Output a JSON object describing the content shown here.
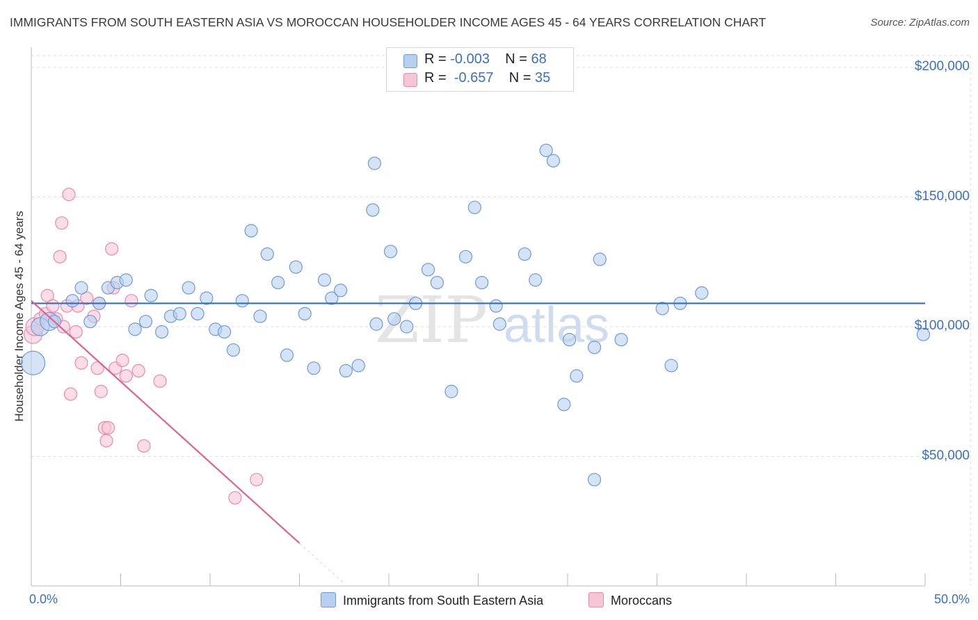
{
  "title": "IMMIGRANTS FROM SOUTH EASTERN ASIA VS MOROCCAN HOUSEHOLDER INCOME AGES 45 - 64 YEARS CORRELATION CHART",
  "source": "Source: ZipAtlas.com",
  "watermark": {
    "zip": "ZIP",
    "atlas": "atlas"
  },
  "legend": {
    "row1": {
      "r_label": "R =",
      "r_value": "-0.003",
      "n_label": "N =",
      "n_value": "68"
    },
    "row2": {
      "r_label": "R =",
      "r_value": "-0.657",
      "n_label": "N =",
      "n_value": "35"
    }
  },
  "colors": {
    "blue_fill": "#b8d0f0",
    "blue_stroke": "#6f9ad8",
    "blue_line": "#2e6fc4",
    "pink_fill": "#f7c6d6",
    "pink_stroke": "#e88aab",
    "pink_line": "#e0608e",
    "axis_text": "#3a6fc4",
    "grid": "#dddddd"
  },
  "chart_data": {
    "type": "scatter",
    "title": "IMMIGRANTS FROM SOUTH EASTERN ASIA VS MOROCCAN HOUSEHOLDER INCOME AGES 45 - 64 YEARS CORRELATION CHART",
    "xlabel": "",
    "ylabel": "Householder Income Ages 45 - 64 years",
    "xlim": [
      0,
      50
    ],
    "ylim": [
      0,
      210000
    ],
    "x_tick_labels": [
      "0.0%",
      "50.0%"
    ],
    "y_ticks": [
      50000,
      100000,
      150000,
      200000
    ],
    "y_tick_labels": [
      "$50,000",
      "$100,000",
      "$150,000",
      "$200,000"
    ],
    "grid": true,
    "legend_position": "top-center",
    "series": [
      {
        "name": "Immigrants from South Eastern Asia",
        "color": "#6f9ad8",
        "trend": {
          "x": [
            0,
            50
          ],
          "y": [
            109000,
            109000
          ]
        },
        "points": [
          {
            "x": 0.1,
            "y": 86000,
            "s": 3
          },
          {
            "x": 0.5,
            "y": 100000,
            "s": 2
          },
          {
            "x": 1.0,
            "y": 102000,
            "s": 2
          },
          {
            "x": 1.3,
            "y": 102000,
            "s": 1
          },
          {
            "x": 2.3,
            "y": 110000,
            "s": 1
          },
          {
            "x": 2.8,
            "y": 115000,
            "s": 1
          },
          {
            "x": 3.3,
            "y": 102000,
            "s": 1
          },
          {
            "x": 3.8,
            "y": 109000,
            "s": 1
          },
          {
            "x": 4.3,
            "y": 115000,
            "s": 1
          },
          {
            "x": 4.8,
            "y": 117000,
            "s": 1
          },
          {
            "x": 5.3,
            "y": 118000,
            "s": 1
          },
          {
            "x": 5.8,
            "y": 99000,
            "s": 1
          },
          {
            "x": 6.4,
            "y": 102000,
            "s": 1
          },
          {
            "x": 6.7,
            "y": 112000,
            "s": 1
          },
          {
            "x": 7.3,
            "y": 98000,
            "s": 1
          },
          {
            "x": 7.8,
            "y": 104000,
            "s": 1
          },
          {
            "x": 8.3,
            "y": 105000,
            "s": 1
          },
          {
            "x": 8.8,
            "y": 115000,
            "s": 1
          },
          {
            "x": 9.3,
            "y": 105000,
            "s": 1
          },
          {
            "x": 9.8,
            "y": 111000,
            "s": 1
          },
          {
            "x": 10.3,
            "y": 99000,
            "s": 1
          },
          {
            "x": 10.8,
            "y": 98000,
            "s": 1
          },
          {
            "x": 11.3,
            "y": 91000,
            "s": 1
          },
          {
            "x": 11.8,
            "y": 110000,
            "s": 1
          },
          {
            "x": 12.3,
            "y": 137000,
            "s": 1
          },
          {
            "x": 12.8,
            "y": 104000,
            "s": 1
          },
          {
            "x": 13.2,
            "y": 128000,
            "s": 1
          },
          {
            "x": 13.8,
            "y": 117000,
            "s": 1
          },
          {
            "x": 14.3,
            "y": 89000,
            "s": 1
          },
          {
            "x": 14.8,
            "y": 123000,
            "s": 1
          },
          {
            "x": 15.3,
            "y": 105000,
            "s": 1
          },
          {
            "x": 15.8,
            "y": 84000,
            "s": 1
          },
          {
            "x": 16.4,
            "y": 118000,
            "s": 1
          },
          {
            "x": 16.8,
            "y": 111000,
            "s": 1
          },
          {
            "x": 17.3,
            "y": 114000,
            "s": 1
          },
          {
            "x": 17.6,
            "y": 83000,
            "s": 1
          },
          {
            "x": 18.3,
            "y": 85000,
            "s": 1
          },
          {
            "x": 19.1,
            "y": 145000,
            "s": 1
          },
          {
            "x": 19.2,
            "y": 163000,
            "s": 1
          },
          {
            "x": 19.3,
            "y": 101000,
            "s": 1
          },
          {
            "x": 20.1,
            "y": 129000,
            "s": 1
          },
          {
            "x": 20.3,
            "y": 103000,
            "s": 1
          },
          {
            "x": 21.0,
            "y": 100000,
            "s": 1
          },
          {
            "x": 21.5,
            "y": 109000,
            "s": 1
          },
          {
            "x": 22.2,
            "y": 122000,
            "s": 1
          },
          {
            "x": 22.7,
            "y": 117000,
            "s": 1
          },
          {
            "x": 23.5,
            "y": 75000,
            "s": 1
          },
          {
            "x": 24.3,
            "y": 127000,
            "s": 1
          },
          {
            "x": 24.8,
            "y": 146000,
            "s": 1
          },
          {
            "x": 25.2,
            "y": 117000,
            "s": 1
          },
          {
            "x": 26.0,
            "y": 108000,
            "s": 1
          },
          {
            "x": 26.2,
            "y": 101000,
            "s": 1
          },
          {
            "x": 27.6,
            "y": 128000,
            "s": 1
          },
          {
            "x": 28.2,
            "y": 118000,
            "s": 1
          },
          {
            "x": 28.8,
            "y": 168000,
            "s": 1
          },
          {
            "x": 29.2,
            "y": 164000,
            "s": 1
          },
          {
            "x": 29.8,
            "y": 70000,
            "s": 1
          },
          {
            "x": 30.1,
            "y": 95000,
            "s": 1
          },
          {
            "x": 30.5,
            "y": 81000,
            "s": 1
          },
          {
            "x": 31.5,
            "y": 92000,
            "s": 1
          },
          {
            "x": 31.8,
            "y": 126000,
            "s": 1
          },
          {
            "x": 33.0,
            "y": 95000,
            "s": 1
          },
          {
            "x": 35.3,
            "y": 107000,
            "s": 1
          },
          {
            "x": 35.8,
            "y": 85000,
            "s": 1
          },
          {
            "x": 36.3,
            "y": 109000,
            "s": 1
          },
          {
            "x": 37.5,
            "y": 113000,
            "s": 1
          },
          {
            "x": 31.5,
            "y": 41000,
            "s": 1
          },
          {
            "x": 49.9,
            "y": 97000,
            "s": 1
          }
        ]
      },
      {
        "name": "Moroccans",
        "color": "#e88aab",
        "trend": {
          "x": [
            0,
            15
          ],
          "y": [
            110000,
            16500
          ]
        },
        "trend_extension": {
          "x": [
            15,
            17.5
          ],
          "y": [
            16500,
            1000
          ]
        },
        "points": [
          {
            "x": 0.1,
            "y": 97000,
            "s": 2
          },
          {
            "x": 0.2,
            "y": 100000,
            "s": 2
          },
          {
            "x": 0.5,
            "y": 103000,
            "s": 1
          },
          {
            "x": 0.8,
            "y": 105000,
            "s": 1
          },
          {
            "x": 0.9,
            "y": 112000,
            "s": 1
          },
          {
            "x": 1.2,
            "y": 108000,
            "s": 1
          },
          {
            "x": 1.4,
            "y": 103000,
            "s": 1
          },
          {
            "x": 1.6,
            "y": 127000,
            "s": 1
          },
          {
            "x": 1.7,
            "y": 140000,
            "s": 1
          },
          {
            "x": 1.8,
            "y": 100000,
            "s": 1
          },
          {
            "x": 2.0,
            "y": 108000,
            "s": 1
          },
          {
            "x": 2.1,
            "y": 151000,
            "s": 1
          },
          {
            "x": 2.2,
            "y": 74000,
            "s": 1
          },
          {
            "x": 2.5,
            "y": 98000,
            "s": 1
          },
          {
            "x": 2.8,
            "y": 86000,
            "s": 1
          },
          {
            "x": 3.1,
            "y": 111000,
            "s": 1
          },
          {
            "x": 3.5,
            "y": 104000,
            "s": 1
          },
          {
            "x": 3.8,
            "y": 109000,
            "s": 1
          },
          {
            "x": 2.6,
            "y": 108000,
            "s": 1
          },
          {
            "x": 3.7,
            "y": 84000,
            "s": 1
          },
          {
            "x": 3.9,
            "y": 75000,
            "s": 1
          },
          {
            "x": 4.1,
            "y": 61000,
            "s": 1
          },
          {
            "x": 4.2,
            "y": 56000,
            "s": 1
          },
          {
            "x": 4.3,
            "y": 61000,
            "s": 1
          },
          {
            "x": 4.5,
            "y": 130000,
            "s": 1
          },
          {
            "x": 4.6,
            "y": 115000,
            "s": 1
          },
          {
            "x": 4.7,
            "y": 84000,
            "s": 1
          },
          {
            "x": 5.1,
            "y": 87000,
            "s": 1
          },
          {
            "x": 5.3,
            "y": 81000,
            "s": 1
          },
          {
            "x": 5.6,
            "y": 110000,
            "s": 1
          },
          {
            "x": 6.0,
            "y": 83000,
            "s": 1
          },
          {
            "x": 6.3,
            "y": 54000,
            "s": 1
          },
          {
            "x": 7.2,
            "y": 79000,
            "s": 1
          },
          {
            "x": 11.4,
            "y": 34000,
            "s": 1
          },
          {
            "x": 12.6,
            "y": 41000,
            "s": 1
          }
        ]
      }
    ]
  }
}
